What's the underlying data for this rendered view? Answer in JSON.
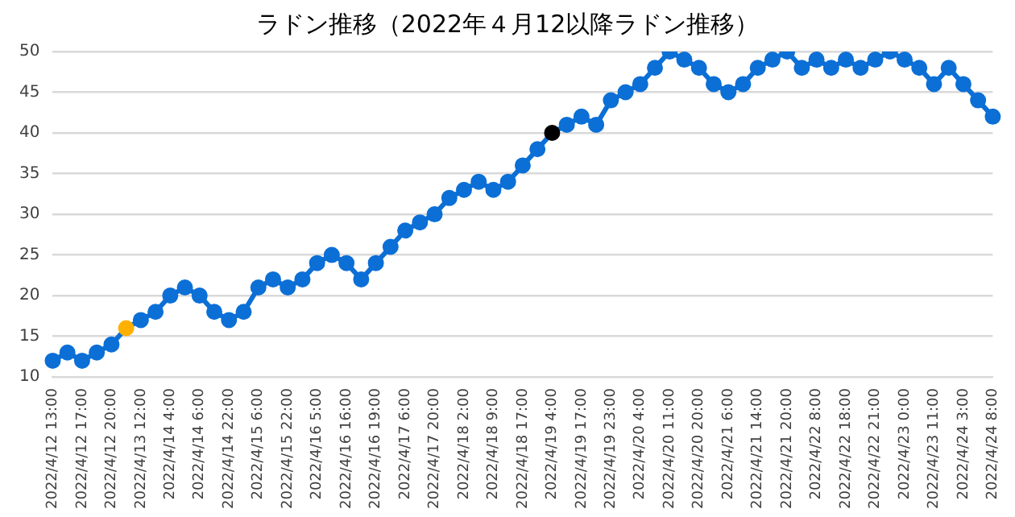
{
  "chart_data": {
    "type": "line",
    "title": "ラドン推移（2022年４月12以降ラドン推移）",
    "categories": [
      "2022/4/12 13:00",
      null,
      "2022/4/12 17:00",
      null,
      "2022/4/12 20:00",
      null,
      "2022/4/13 12:00",
      null,
      "2022/4/14 4:00",
      null,
      "2022/4/14 6:00",
      null,
      "2022/4/14 22:00",
      null,
      "2022/4/15 6:00",
      null,
      "2022/4/15 22:00",
      null,
      "2022/4/16 5:00",
      null,
      "2022/4/16 16:00",
      null,
      "2022/4/16 19:00",
      null,
      "2022/4/17 6:00",
      null,
      "2022/4/17 20:00",
      null,
      "2022/4/18 2:00",
      null,
      "2022/4/18 9:00",
      null,
      "2022/4/18 17:00",
      null,
      "2022/4/19 4:00",
      null,
      "2022/4/19 17:00",
      null,
      "2022/4/19 23:00",
      null,
      "2022/4/20 4:00",
      null,
      "2022/4/20 11:00",
      null,
      "2022/4/20 20:00",
      null,
      "2022/4/21 6:00",
      null,
      "2022/4/21 14:00",
      null,
      "2022/4/21 20:00",
      null,
      "2022/4/22 8:00",
      null,
      "2022/4/22 18:00",
      null,
      "2022/4/22 21:00",
      null,
      "2022/4/23 0:00",
      null,
      "2022/4/23 11:00",
      null,
      "2022/4/24 3:00",
      null,
      "2022/4/24 8:00"
    ],
    "series": [
      {
        "color": "#0b6fd6",
        "colors": [
          "#0b6fd6",
          "#0b6fd6",
          "#0b6fd6",
          "#0b6fd6",
          "#0b6fd6",
          "#ffb000",
          "#0b6fd6",
          "#0b6fd6",
          "#0b6fd6",
          "#0b6fd6",
          "#0b6fd6",
          "#0b6fd6",
          "#0b6fd6",
          "#0b6fd6",
          "#0b6fd6",
          "#0b6fd6",
          "#0b6fd6",
          "#0b6fd6",
          "#0b6fd6",
          "#0b6fd6",
          "#0b6fd6",
          "#0b6fd6",
          "#0b6fd6",
          "#0b6fd6",
          "#0b6fd6",
          "#0b6fd6",
          "#0b6fd6",
          "#0b6fd6",
          "#0b6fd6",
          "#0b6fd6",
          "#0b6fd6",
          "#0b6fd6",
          "#0b6fd6",
          "#0b6fd6",
          "#000000",
          "#0b6fd6",
          "#0b6fd6",
          "#0b6fd6",
          "#0b6fd6",
          "#0b6fd6",
          "#0b6fd6",
          "#0b6fd6",
          "#0b6fd6",
          "#0b6fd6",
          "#0b6fd6",
          "#0b6fd6",
          "#0b6fd6",
          "#0b6fd6",
          "#0b6fd6",
          "#0b6fd6",
          "#0b6fd6",
          "#0b6fd6",
          "#0b6fd6",
          "#0b6fd6",
          "#0b6fd6",
          "#0b6fd6",
          "#0b6fd6",
          "#0b6fd6",
          "#0b6fd6",
          "#0b6fd6",
          "#0b6fd6",
          "#0b6fd6",
          "#0b6fd6",
          "#0b6fd6",
          "#0b6fd6"
        ],
        "values": [
          12,
          13,
          12,
          13,
          14,
          16,
          17,
          18,
          20,
          21,
          20,
          18,
          17,
          18,
          21,
          22,
          21,
          22,
          24,
          25,
          24,
          22,
          24,
          26,
          28,
          29,
          30,
          32,
          33,
          34,
          33,
          34,
          36,
          38,
          40,
          41,
          42,
          41,
          44,
          45,
          46,
          48,
          50,
          49,
          48,
          46,
          45,
          46,
          48,
          49,
          50,
          48,
          49,
          48,
          49,
          48,
          49,
          50,
          49,
          48,
          46,
          48,
          46,
          44,
          42
        ]
      }
    ],
    "ylim": [
      10,
      50
    ],
    "yticks": [
      10,
      15,
      20,
      25,
      30,
      35,
      40,
      45,
      50
    ],
    "grid": "y",
    "legend": false,
    "marker": "circle",
    "line_style": "solid"
  }
}
